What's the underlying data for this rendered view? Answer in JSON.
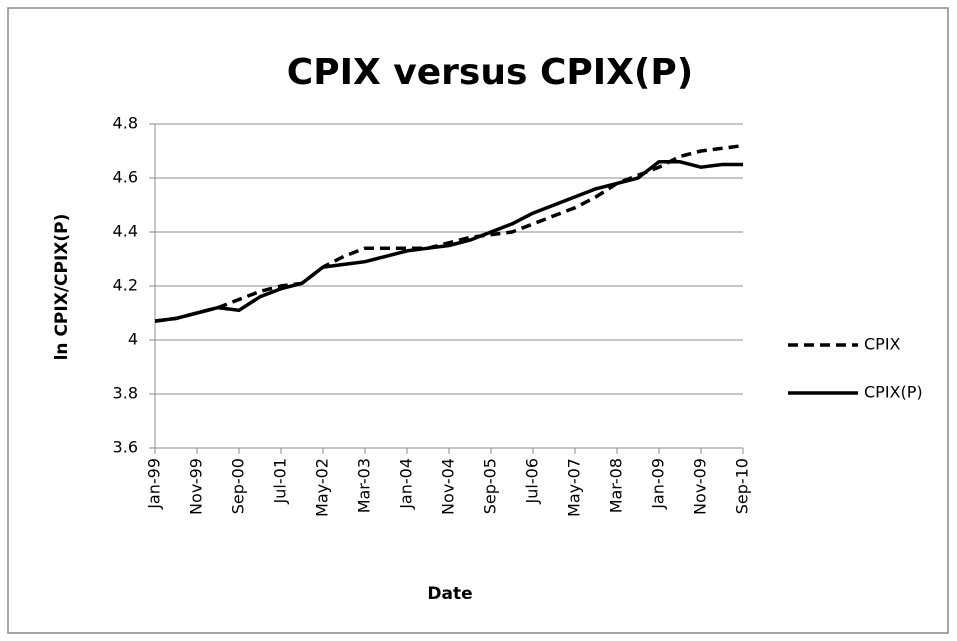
{
  "chart_data": {
    "type": "line",
    "title": "CPIX versus CPIX(P)",
    "x_label": "Date",
    "y_label": "ln CPIX/CPIX(P)",
    "categories": [
      "Jan-99",
      null,
      "Nov-99",
      null,
      "Sep-00",
      null,
      "Jul-01",
      null,
      "May-02",
      null,
      "Mar-03",
      null,
      "Jan-04",
      null,
      "Nov-04",
      null,
      "Sep-05",
      null,
      "Jul-06",
      null,
      "May-07",
      null,
      "Mar-08",
      null,
      "Jan-09",
      null,
      "Nov-09",
      null,
      "Sep-10"
    ],
    "series": [
      {
        "name": "CPIX",
        "color": "#000000",
        "line_style": "dashed",
        "values": [
          4.07,
          4.08,
          4.1,
          4.12,
          4.15,
          4.18,
          4.2,
          4.21,
          4.27,
          4.31,
          4.34,
          4.34,
          4.34,
          4.34,
          4.36,
          4.38,
          4.39,
          4.4,
          4.43,
          4.46,
          4.49,
          4.53,
          4.58,
          4.61,
          4.64,
          4.68,
          4.7,
          4.71,
          4.72
        ]
      },
      {
        "name": "CPIX(P)",
        "color": "#000000",
        "line_style": "solid",
        "values": [
          4.07,
          4.08,
          4.1,
          4.12,
          4.11,
          4.16,
          4.19,
          4.21,
          4.27,
          4.28,
          4.29,
          4.31,
          4.33,
          4.34,
          4.35,
          4.37,
          4.4,
          4.43,
          4.47,
          4.5,
          4.53,
          4.56,
          4.58,
          4.6,
          4.66,
          4.66,
          4.64,
          4.65,
          4.65
        ]
      }
    ],
    "ylim": [
      3.6,
      4.8
    ],
    "yticks": [
      3.6,
      3.8,
      4,
      4.2,
      4.4,
      4.6,
      4.8
    ],
    "grid": true,
    "legend": "right"
  }
}
